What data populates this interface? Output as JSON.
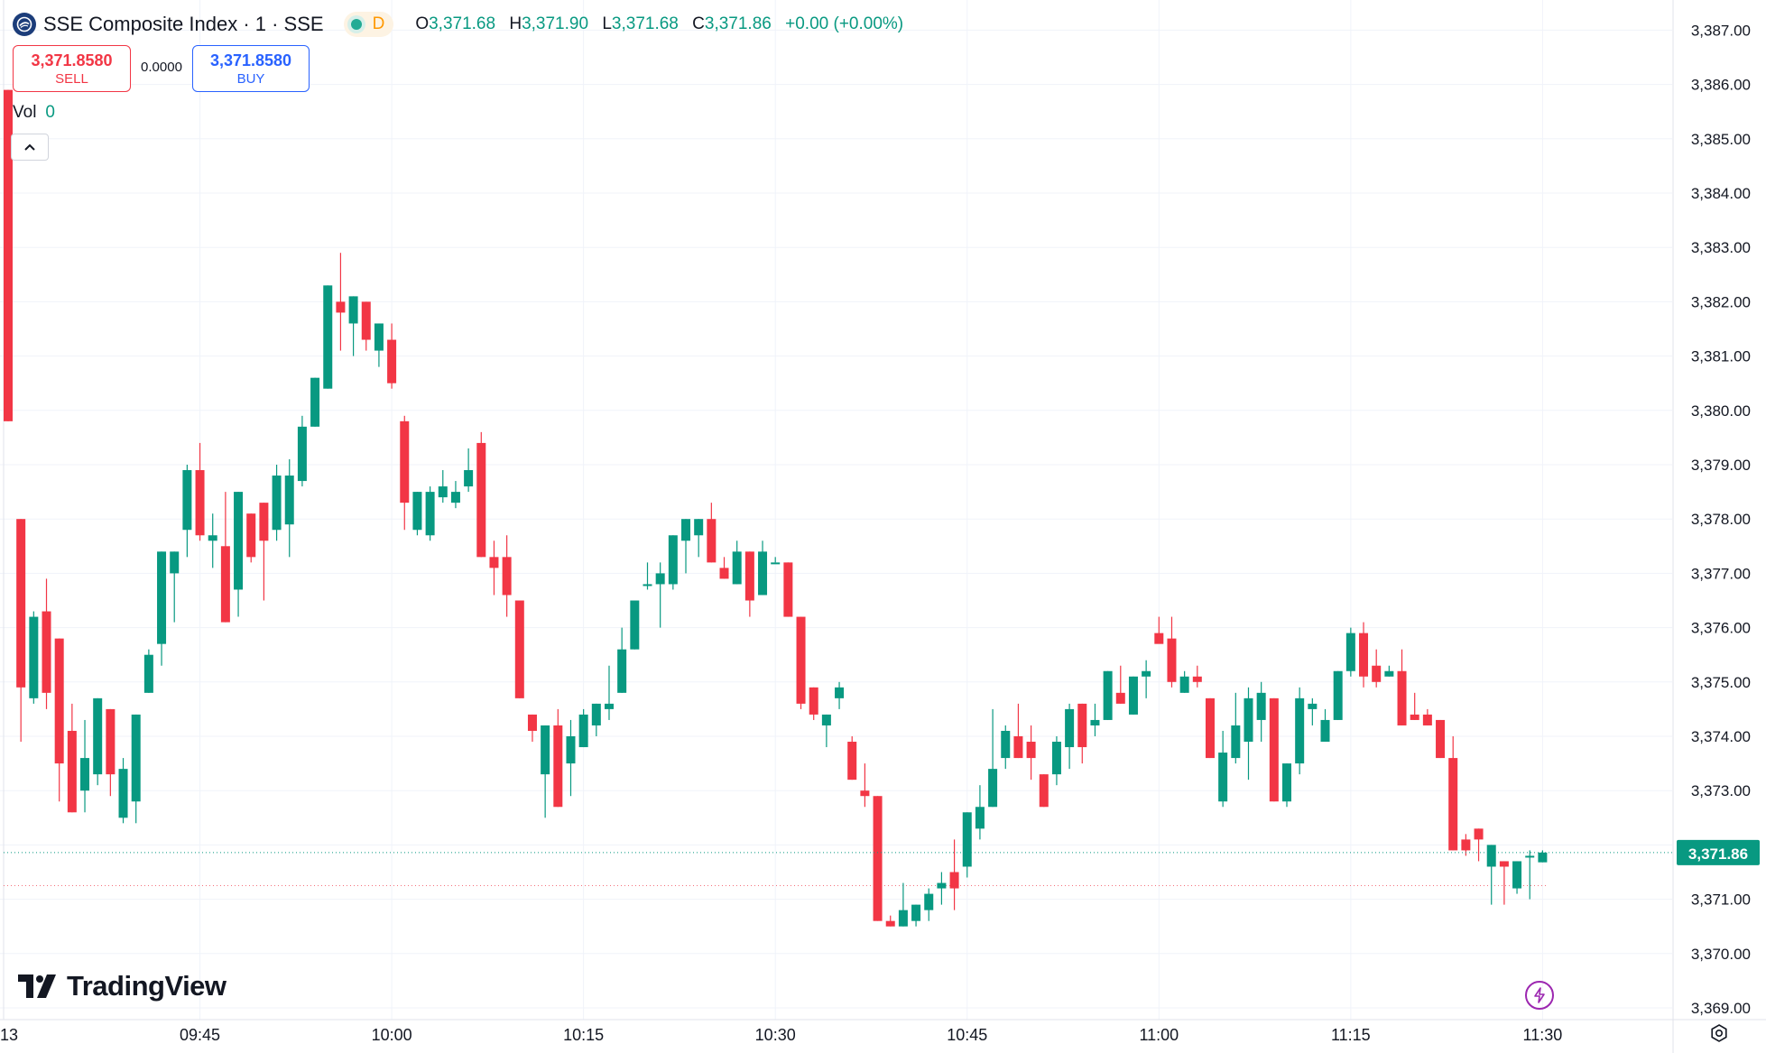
{
  "header": {
    "symbol_title": "SSE Composite Index · 1 · SSE",
    "timeframe": "D",
    "o_label": "O",
    "o_value": "3,371.68",
    "h_label": "H",
    "h_value": "3,371.90",
    "l_label": "L",
    "l_value": "3,371.68",
    "c_label": "C",
    "c_value": "3,371.86",
    "change": "+0.00 (+0.00%)"
  },
  "trade": {
    "sell_price": "3,371.8580",
    "sell_label": "SELL",
    "spread": "0.0000",
    "buy_price": "3,371.8580",
    "buy_label": "BUY"
  },
  "volume": {
    "label": "Vol",
    "value": "0"
  },
  "brand": {
    "name": "TradingView"
  },
  "colors": {
    "up": "#089981",
    "down": "#f23645",
    "grid": "#f0f3fa",
    "text": "#131722",
    "buy": "#2962ff",
    "timeframe": "#ff9800",
    "bolt": "#9c27b0"
  },
  "icons": [
    "symbol-logo-icon",
    "chevron-up-icon",
    "tradingview-logo-icon",
    "bolt-icon",
    "settings-icon"
  ],
  "chart_data": {
    "type": "candlestick",
    "title": "SSE Composite Index · 1 · SSE",
    "y_ticks": [
      "3,369.00",
      "3,370.00",
      "3,371.00",
      "3,372.00",
      "3,373.00",
      "3,374.00",
      "3,375.00",
      "3,376.00",
      "3,377.00",
      "3,378.00",
      "3,379.00",
      "3,380.00",
      "3,381.00",
      "3,382.00",
      "3,383.00",
      "3,384.00",
      "3,385.00",
      "3,386.00",
      "3,387.00"
    ],
    "y_tick_values": [
      3369,
      3370,
      3371,
      3372,
      3373,
      3374,
      3375,
      3376,
      3377,
      3378,
      3379,
      3380,
      3381,
      3382,
      3383,
      3384,
      3385,
      3386,
      3387
    ],
    "x_labels": [
      "13",
      "09:45",
      "10:00",
      "10:15",
      "10:30",
      "10:45",
      "11:00",
      "11:15",
      "11:30"
    ],
    "x_label_minutes": [
      -12,
      15,
      30,
      45,
      60,
      75,
      90,
      105,
      120
    ],
    "last_price_label": "3,371.86",
    "last_price": 3371.86,
    "ref_price": 3371.25,
    "candles": [
      {
        "t": 0,
        "o": 3385.9,
        "h": 3385.9,
        "l": 3379.8,
        "c": 3379.8
      },
      {
        "t": 1,
        "o": 3378.0,
        "h": 3378.0,
        "l": 3373.9,
        "c": 3374.9
      },
      {
        "t": 2,
        "o": 3374.7,
        "h": 3376.3,
        "l": 3374.6,
        "c": 3376.2
      },
      {
        "t": 3,
        "o": 3376.3,
        "h": 3376.9,
        "l": 3374.5,
        "c": 3374.8
      },
      {
        "t": 4,
        "o": 3375.8,
        "h": 3375.8,
        "l": 3372.8,
        "c": 3373.5
      },
      {
        "t": 5,
        "o": 3374.1,
        "h": 3374.6,
        "l": 3372.6,
        "c": 3372.6
      },
      {
        "t": 6,
        "o": 3373.0,
        "h": 3374.3,
        "l": 3372.6,
        "c": 3373.6
      },
      {
        "t": 7,
        "o": 3373.3,
        "h": 3374.7,
        "l": 3373.1,
        "c": 3374.7
      },
      {
        "t": 8,
        "o": 3374.5,
        "h": 3374.5,
        "l": 3372.9,
        "c": 3373.3
      },
      {
        "t": 9,
        "o": 3372.5,
        "h": 3373.6,
        "l": 3372.4,
        "c": 3373.4
      },
      {
        "t": 10,
        "o": 3372.8,
        "h": 3374.4,
        "l": 3372.4,
        "c": 3374.4
      },
      {
        "t": 11,
        "o": 3374.8,
        "h": 3375.6,
        "l": 3374.8,
        "c": 3375.5
      },
      {
        "t": 12,
        "o": 3375.7,
        "h": 3377.4,
        "l": 3375.3,
        "c": 3377.4
      },
      {
        "t": 13,
        "o": 3377.0,
        "h": 3377.4,
        "l": 3376.1,
        "c": 3377.4
      },
      {
        "t": 14,
        "o": 3377.8,
        "h": 3379.0,
        "l": 3377.3,
        "c": 3378.9
      },
      {
        "t": 15,
        "o": 3378.9,
        "h": 3379.4,
        "l": 3377.6,
        "c": 3377.7
      },
      {
        "t": 16,
        "o": 3377.6,
        "h": 3378.1,
        "l": 3377.1,
        "c": 3377.7
      },
      {
        "t": 17,
        "o": 3377.5,
        "h": 3378.5,
        "l": 3376.1,
        "c": 3376.1
      },
      {
        "t": 18,
        "o": 3376.7,
        "h": 3378.5,
        "l": 3376.2,
        "c": 3378.5
      },
      {
        "t": 19,
        "o": 3378.1,
        "h": 3378.1,
        "l": 3377.2,
        "c": 3377.3
      },
      {
        "t": 20,
        "o": 3378.3,
        "h": 3378.3,
        "l": 3376.5,
        "c": 3377.6
      },
      {
        "t": 21,
        "o": 3377.8,
        "h": 3379.0,
        "l": 3377.6,
        "c": 3378.8
      },
      {
        "t": 22,
        "o": 3377.9,
        "h": 3379.1,
        "l": 3377.3,
        "c": 3378.8
      },
      {
        "t": 23,
        "o": 3378.7,
        "h": 3379.9,
        "l": 3378.6,
        "c": 3379.7
      },
      {
        "t": 24,
        "o": 3379.7,
        "h": 3380.6,
        "l": 3379.7,
        "c": 3380.6
      },
      {
        "t": 25,
        "o": 3380.4,
        "h": 3382.3,
        "l": 3380.4,
        "c": 3382.3
      },
      {
        "t": 26,
        "o": 3382.0,
        "h": 3382.9,
        "l": 3381.1,
        "c": 3381.8
      },
      {
        "t": 27,
        "o": 3381.6,
        "h": 3382.1,
        "l": 3381.0,
        "c": 3382.1
      },
      {
        "t": 28,
        "o": 3382.0,
        "h": 3382.0,
        "l": 3381.1,
        "c": 3381.3
      },
      {
        "t": 29,
        "o": 3381.1,
        "h": 3381.6,
        "l": 3380.8,
        "c": 3381.6
      },
      {
        "t": 30,
        "o": 3381.3,
        "h": 3381.6,
        "l": 3380.4,
        "c": 3380.5
      },
      {
        "t": 31,
        "o": 3379.8,
        "h": 3379.9,
        "l": 3377.8,
        "c": 3378.3
      },
      {
        "t": 32,
        "o": 3377.8,
        "h": 3378.5,
        "l": 3377.7,
        "c": 3378.5
      },
      {
        "t": 33,
        "o": 3377.7,
        "h": 3378.6,
        "l": 3377.6,
        "c": 3378.5
      },
      {
        "t": 34,
        "o": 3378.4,
        "h": 3378.9,
        "l": 3378.3,
        "c": 3378.6
      },
      {
        "t": 35,
        "o": 3378.3,
        "h": 3378.7,
        "l": 3378.2,
        "c": 3378.5
      },
      {
        "t": 36,
        "o": 3378.6,
        "h": 3379.3,
        "l": 3378.5,
        "c": 3378.9
      },
      {
        "t": 37,
        "o": 3379.4,
        "h": 3379.6,
        "l": 3377.3,
        "c": 3377.3
      },
      {
        "t": 38,
        "o": 3377.3,
        "h": 3377.6,
        "l": 3376.6,
        "c": 3377.1
      },
      {
        "t": 39,
        "o": 3377.3,
        "h": 3377.7,
        "l": 3376.2,
        "c": 3376.6
      },
      {
        "t": 40,
        "o": 3376.5,
        "h": 3376.5,
        "l": 3374.7,
        "c": 3374.7
      },
      {
        "t": 41,
        "o": 3374.4,
        "h": 3374.4,
        "l": 3373.9,
        "c": 3374.1
      },
      {
        "t": 42,
        "o": 3373.3,
        "h": 3374.2,
        "l": 3372.5,
        "c": 3374.2
      },
      {
        "t": 43,
        "o": 3374.2,
        "h": 3374.5,
        "l": 3372.7,
        "c": 3372.7
      },
      {
        "t": 44,
        "o": 3373.5,
        "h": 3374.3,
        "l": 3372.9,
        "c": 3374.0
      },
      {
        "t": 45,
        "o": 3373.8,
        "h": 3374.5,
        "l": 3373.8,
        "c": 3374.4
      },
      {
        "t": 46,
        "o": 3374.2,
        "h": 3374.6,
        "l": 3374.0,
        "c": 3374.6
      },
      {
        "t": 47,
        "o": 3374.5,
        "h": 3375.3,
        "l": 3374.3,
        "c": 3374.6
      },
      {
        "t": 48,
        "o": 3374.8,
        "h": 3376.0,
        "l": 3374.8,
        "c": 3375.6
      },
      {
        "t": 49,
        "o": 3375.6,
        "h": 3376.5,
        "l": 3375.6,
        "c": 3376.5
      },
      {
        "t": 50,
        "o": 3376.8,
        "h": 3377.2,
        "l": 3376.7,
        "c": 3376.8
      },
      {
        "t": 51,
        "o": 3376.8,
        "h": 3377.2,
        "l": 3376.0,
        "c": 3377.0
      },
      {
        "t": 52,
        "o": 3376.8,
        "h": 3377.7,
        "l": 3376.7,
        "c": 3377.7
      },
      {
        "t": 53,
        "o": 3377.6,
        "h": 3378.0,
        "l": 3377.0,
        "c": 3378.0
      },
      {
        "t": 54,
        "o": 3377.7,
        "h": 3378.0,
        "l": 3377.3,
        "c": 3378.0
      },
      {
        "t": 55,
        "o": 3378.0,
        "h": 3378.3,
        "l": 3377.2,
        "c": 3377.2
      },
      {
        "t": 56,
        "o": 3377.1,
        "h": 3377.3,
        "l": 3376.9,
        "c": 3376.9
      },
      {
        "t": 57,
        "o": 3376.8,
        "h": 3377.6,
        "l": 3376.8,
        "c": 3377.4
      },
      {
        "t": 58,
        "o": 3377.4,
        "h": 3377.4,
        "l": 3376.2,
        "c": 3376.5
      },
      {
        "t": 59,
        "o": 3376.6,
        "h": 3377.6,
        "l": 3376.6,
        "c": 3377.4
      },
      {
        "t": 60,
        "o": 3377.2,
        "h": 3377.3,
        "l": 3377.2,
        "c": 3377.2
      },
      {
        "t": 61,
        "o": 3377.2,
        "h": 3377.2,
        "l": 3376.2,
        "c": 3376.2
      },
      {
        "t": 62,
        "o": 3376.2,
        "h": 3376.2,
        "l": 3374.5,
        "c": 3374.6
      },
      {
        "t": 63,
        "o": 3374.9,
        "h": 3374.9,
        "l": 3374.3,
        "c": 3374.4
      },
      {
        "t": 64,
        "o": 3374.2,
        "h": 3374.4,
        "l": 3373.8,
        "c": 3374.4
      },
      {
        "t": 65,
        "o": 3374.7,
        "h": 3375.0,
        "l": 3374.5,
        "c": 3374.9
      },
      {
        "t": 66,
        "o": 3373.9,
        "h": 3374.0,
        "l": 3373.2,
        "c": 3373.2
      },
      {
        "t": 67,
        "o": 3373.0,
        "h": 3373.5,
        "l": 3372.7,
        "c": 3372.9
      },
      {
        "t": 68,
        "o": 3372.9,
        "h": 3372.9,
        "l": 3370.6,
        "c": 3370.6
      },
      {
        "t": 69,
        "o": 3370.6,
        "h": 3370.7,
        "l": 3370.5,
        "c": 3370.5
      },
      {
        "t": 70,
        "o": 3370.5,
        "h": 3371.3,
        "l": 3370.5,
        "c": 3370.8
      },
      {
        "t": 71,
        "o": 3370.6,
        "h": 3370.9,
        "l": 3370.5,
        "c": 3370.9
      },
      {
        "t": 72,
        "o": 3370.8,
        "h": 3371.2,
        "l": 3370.6,
        "c": 3371.1
      },
      {
        "t": 73,
        "o": 3371.2,
        "h": 3371.5,
        "l": 3370.9,
        "c": 3371.3
      },
      {
        "t": 74,
        "o": 3371.5,
        "h": 3372.1,
        "l": 3370.8,
        "c": 3371.2
      },
      {
        "t": 75,
        "o": 3371.6,
        "h": 3372.6,
        "l": 3371.4,
        "c": 3372.6
      },
      {
        "t": 76,
        "o": 3372.3,
        "h": 3373.1,
        "l": 3372.1,
        "c": 3372.7
      },
      {
        "t": 77,
        "o": 3372.7,
        "h": 3374.5,
        "l": 3372.7,
        "c": 3373.4
      },
      {
        "t": 78,
        "o": 3373.6,
        "h": 3374.2,
        "l": 3373.4,
        "c": 3374.1
      },
      {
        "t": 79,
        "o": 3374.0,
        "h": 3374.6,
        "l": 3373.6,
        "c": 3373.6
      },
      {
        "t": 80,
        "o": 3373.9,
        "h": 3374.2,
        "l": 3373.2,
        "c": 3373.6
      },
      {
        "t": 81,
        "o": 3373.3,
        "h": 3373.3,
        "l": 3372.7,
        "c": 3372.7
      },
      {
        "t": 82,
        "o": 3373.3,
        "h": 3374.0,
        "l": 3373.1,
        "c": 3373.9
      },
      {
        "t": 83,
        "o": 3373.8,
        "h": 3374.6,
        "l": 3373.4,
        "c": 3374.5
      },
      {
        "t": 84,
        "o": 3374.6,
        "h": 3374.6,
        "l": 3373.5,
        "c": 3373.8
      },
      {
        "t": 85,
        "o": 3374.2,
        "h": 3374.6,
        "l": 3374.0,
        "c": 3374.3
      },
      {
        "t": 86,
        "o": 3374.3,
        "h": 3375.2,
        "l": 3374.3,
        "c": 3375.2
      },
      {
        "t": 87,
        "o": 3374.8,
        "h": 3375.3,
        "l": 3374.6,
        "c": 3374.6
      },
      {
        "t": 88,
        "o": 3374.4,
        "h": 3375.1,
        "l": 3374.4,
        "c": 3375.1
      },
      {
        "t": 89,
        "o": 3375.1,
        "h": 3375.4,
        "l": 3374.7,
        "c": 3375.2
      },
      {
        "t": 90,
        "o": 3375.9,
        "h": 3376.2,
        "l": 3375.8,
        "c": 3375.7
      },
      {
        "t": 91,
        "o": 3375.8,
        "h": 3376.2,
        "l": 3374.9,
        "c": 3375.0
      },
      {
        "t": 92,
        "o": 3374.8,
        "h": 3375.2,
        "l": 3374.8,
        "c": 3375.1
      },
      {
        "t": 93,
        "o": 3375.1,
        "h": 3375.3,
        "l": 3374.9,
        "c": 3375.0
      },
      {
        "t": 94,
        "o": 3374.7,
        "h": 3374.7,
        "l": 3373.6,
        "c": 3373.6
      },
      {
        "t": 95,
        "o": 3372.8,
        "h": 3374.1,
        "l": 3372.7,
        "c": 3373.7
      },
      {
        "t": 96,
        "o": 3373.6,
        "h": 3374.8,
        "l": 3373.5,
        "c": 3374.2
      },
      {
        "t": 97,
        "o": 3373.9,
        "h": 3374.9,
        "l": 3373.2,
        "c": 3374.7
      },
      {
        "t": 98,
        "o": 3374.3,
        "h": 3375.0,
        "l": 3373.9,
        "c": 3374.8
      },
      {
        "t": 99,
        "o": 3374.7,
        "h": 3374.7,
        "l": 3372.8,
        "c": 3372.8
      },
      {
        "t": 100,
        "o": 3372.8,
        "h": 3373.5,
        "l": 3372.7,
        "c": 3373.5
      },
      {
        "t": 101,
        "o": 3373.5,
        "h": 3374.9,
        "l": 3373.3,
        "c": 3374.7
      },
      {
        "t": 102,
        "o": 3374.5,
        "h": 3374.7,
        "l": 3374.2,
        "c": 3374.6
      },
      {
        "t": 103,
        "o": 3373.9,
        "h": 3374.5,
        "l": 3373.9,
        "c": 3374.3
      },
      {
        "t": 104,
        "o": 3374.3,
        "h": 3375.2,
        "l": 3374.3,
        "c": 3375.2
      },
      {
        "t": 105,
        "o": 3375.2,
        "h": 3376.0,
        "l": 3375.1,
        "c": 3375.9
      },
      {
        "t": 106,
        "o": 3375.9,
        "h": 3376.1,
        "l": 3374.9,
        "c": 3375.1
      },
      {
        "t": 107,
        "o": 3375.3,
        "h": 3375.6,
        "l": 3374.9,
        "c": 3375.0
      },
      {
        "t": 108,
        "o": 3375.1,
        "h": 3375.3,
        "l": 3375.1,
        "c": 3375.2
      },
      {
        "t": 109,
        "o": 3375.2,
        "h": 3375.6,
        "l": 3374.2,
        "c": 3374.2
      },
      {
        "t": 110,
        "o": 3374.4,
        "h": 3374.8,
        "l": 3374.3,
        "c": 3374.3
      },
      {
        "t": 111,
        "o": 3374.4,
        "h": 3374.5,
        "l": 3374.2,
        "c": 3374.2
      },
      {
        "t": 112,
        "o": 3374.3,
        "h": 3374.3,
        "l": 3373.6,
        "c": 3373.6
      },
      {
        "t": 113,
        "o": 3373.6,
        "h": 3374.0,
        "l": 3371.9,
        "c": 3371.9
      },
      {
        "t": 114,
        "o": 3372.1,
        "h": 3372.2,
        "l": 3371.8,
        "c": 3371.9
      },
      {
        "t": 115,
        "o": 3372.3,
        "h": 3372.3,
        "l": 3371.7,
        "c": 3372.1
      },
      {
        "t": 116,
        "o": 3371.6,
        "h": 3372.0,
        "l": 3370.9,
        "c": 3372.0
      },
      {
        "t": 117,
        "o": 3371.7,
        "h": 3371.7,
        "l": 3370.9,
        "c": 3371.6
      },
      {
        "t": 118,
        "o": 3371.2,
        "h": 3371.7,
        "l": 3371.1,
        "c": 3371.7
      },
      {
        "t": 119,
        "o": 3371.8,
        "h": 3371.9,
        "l": 3371.0,
        "c": 3371.8
      },
      {
        "t": 120,
        "o": 3371.68,
        "h": 3371.9,
        "l": 3371.68,
        "c": 3371.86
      }
    ]
  }
}
